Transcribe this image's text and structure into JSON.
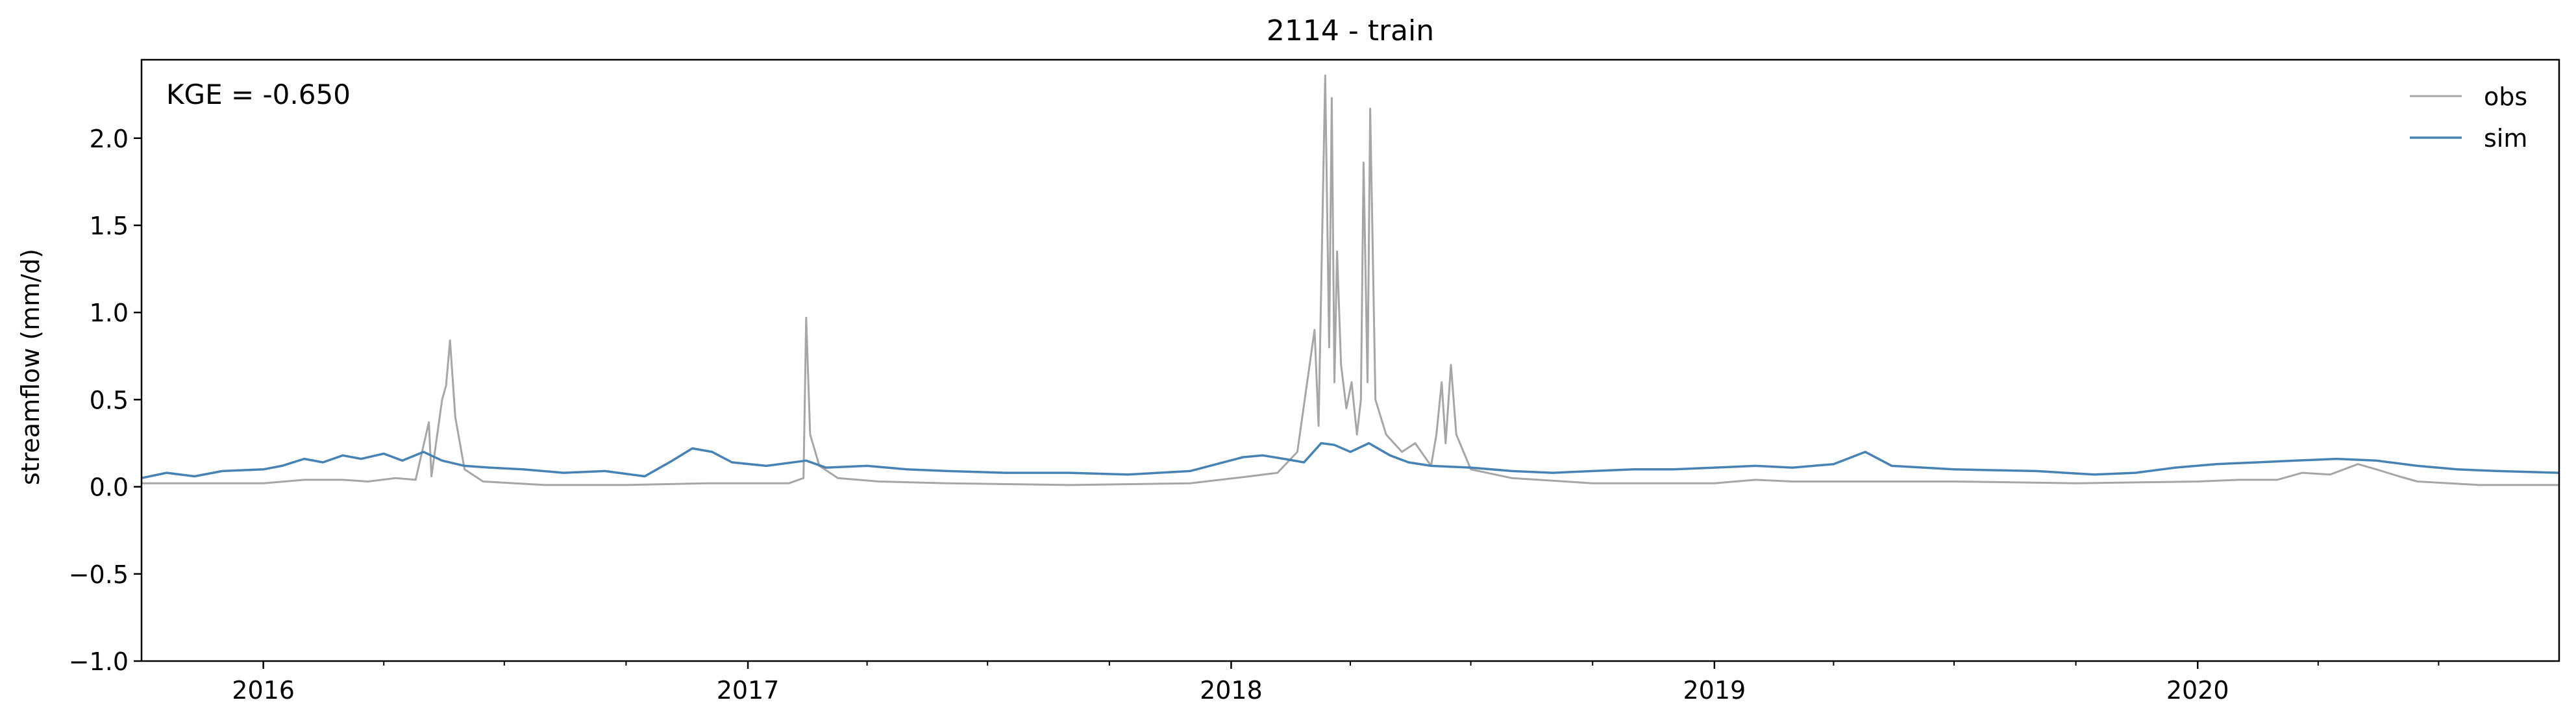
{
  "chart_data": {
    "type": "line",
    "title": "2114 - train",
    "xlabel": "",
    "ylabel": "streamflow (mm/d)",
    "xlim": [
      "2015-10-01",
      "2020-09-30"
    ],
    "ylim": [
      -1.0,
      2.45
    ],
    "yticks": [
      -1.0,
      -0.5,
      0.0,
      0.5,
      1.0,
      1.5,
      2.0
    ],
    "ytick_labels": [
      "−1.0",
      "−0.5",
      "0.0",
      "0.5",
      "1.0",
      "1.5",
      "2.0"
    ],
    "xticks": [
      "2016-01-01",
      "2017-01-01",
      "2018-01-01",
      "2019-01-01",
      "2020-01-01"
    ],
    "xtick_labels": [
      "2016",
      "2017",
      "2018",
      "2019",
      "2020"
    ],
    "annotation": "KGE = -0.650",
    "grid": false,
    "legend_position": "top-right",
    "series": [
      {
        "name": "obs",
        "color": "#a6a6a6",
        "points": [
          [
            "2015-10-01",
            0.02
          ],
          [
            "2015-11-15",
            0.02
          ],
          [
            "2016-01-01",
            0.02
          ],
          [
            "2016-02-01",
            0.04
          ],
          [
            "2016-03-01",
            0.04
          ],
          [
            "2016-03-20",
            0.03
          ],
          [
            "2016-04-10",
            0.05
          ],
          [
            "2016-04-25",
            0.04
          ],
          [
            "2016-05-05",
            0.37
          ],
          [
            "2016-05-07",
            0.06
          ],
          [
            "2016-05-15",
            0.5
          ],
          [
            "2016-05-18",
            0.58
          ],
          [
            "2016-05-21",
            0.84
          ],
          [
            "2016-05-25",
            0.4
          ],
          [
            "2016-06-01",
            0.1
          ],
          [
            "2016-06-15",
            0.03
          ],
          [
            "2016-08-01",
            0.01
          ],
          [
            "2016-10-01",
            0.01
          ],
          [
            "2016-12-01",
            0.02
          ],
          [
            "2017-02-01",
            0.02
          ],
          [
            "2017-02-12",
            0.05
          ],
          [
            "2017-02-14",
            0.97
          ],
          [
            "2017-02-17",
            0.3
          ],
          [
            "2017-02-24",
            0.12
          ],
          [
            "2017-03-10",
            0.05
          ],
          [
            "2017-04-10",
            0.03
          ],
          [
            "2017-06-01",
            0.02
          ],
          [
            "2017-09-01",
            0.01
          ],
          [
            "2017-12-01",
            0.02
          ],
          [
            "2018-01-15",
            0.06
          ],
          [
            "2018-02-05",
            0.08
          ],
          [
            "2018-02-20",
            0.2
          ],
          [
            "2018-03-05",
            0.9
          ],
          [
            "2018-03-08",
            0.35
          ],
          [
            "2018-03-13",
            2.36
          ],
          [
            "2018-03-16",
            0.8
          ],
          [
            "2018-03-18",
            2.23
          ],
          [
            "2018-03-20",
            0.6
          ],
          [
            "2018-03-22",
            1.35
          ],
          [
            "2018-03-25",
            0.7
          ],
          [
            "2018-03-29",
            0.45
          ],
          [
            "2018-04-02",
            0.6
          ],
          [
            "2018-04-06",
            0.3
          ],
          [
            "2018-04-09",
            0.5
          ],
          [
            "2018-04-11",
            1.86
          ],
          [
            "2018-04-14",
            0.6
          ],
          [
            "2018-04-16",
            2.17
          ],
          [
            "2018-04-20",
            0.5
          ],
          [
            "2018-04-28",
            0.3
          ],
          [
            "2018-05-10",
            0.2
          ],
          [
            "2018-05-20",
            0.25
          ],
          [
            "2018-06-01",
            0.12
          ],
          [
            "2018-06-05",
            0.3
          ],
          [
            "2018-06-09",
            0.6
          ],
          [
            "2018-06-12",
            0.25
          ],
          [
            "2018-06-16",
            0.7
          ],
          [
            "2018-06-20",
            0.3
          ],
          [
            "2018-07-01",
            0.1
          ],
          [
            "2018-08-01",
            0.05
          ],
          [
            "2018-10-01",
            0.02
          ],
          [
            "2019-01-01",
            0.02
          ],
          [
            "2019-02-01",
            0.04
          ],
          [
            "2019-03-01",
            0.03
          ],
          [
            "2019-05-01",
            0.03
          ],
          [
            "2019-07-01",
            0.03
          ],
          [
            "2019-10-01",
            0.02
          ],
          [
            "2020-01-01",
            0.03
          ],
          [
            "2020-02-01",
            0.04
          ],
          [
            "2020-03-01",
            0.04
          ],
          [
            "2020-03-20",
            0.08
          ],
          [
            "2020-04-10",
            0.07
          ],
          [
            "2020-05-01",
            0.13
          ],
          [
            "2020-05-15",
            0.1
          ],
          [
            "2020-06-01",
            0.06
          ],
          [
            "2020-06-15",
            0.03
          ],
          [
            "2020-08-01",
            0.01
          ],
          [
            "2020-09-30",
            0.01
          ]
        ]
      },
      {
        "name": "sim",
        "color": "#4682b4",
        "points": [
          [
            "2015-10-01",
            0.05
          ],
          [
            "2015-10-20",
            0.08
          ],
          [
            "2015-11-10",
            0.06
          ],
          [
            "2015-12-01",
            0.09
          ],
          [
            "2016-01-01",
            0.1
          ],
          [
            "2016-01-15",
            0.12
          ],
          [
            "2016-02-01",
            0.16
          ],
          [
            "2016-02-15",
            0.14
          ],
          [
            "2016-03-01",
            0.18
          ],
          [
            "2016-03-15",
            0.16
          ],
          [
            "2016-04-01",
            0.19
          ],
          [
            "2016-04-15",
            0.15
          ],
          [
            "2016-05-01",
            0.2
          ],
          [
            "2016-05-15",
            0.15
          ],
          [
            "2016-06-01",
            0.12
          ],
          [
            "2016-06-20",
            0.11
          ],
          [
            "2016-07-15",
            0.1
          ],
          [
            "2016-08-15",
            0.08
          ],
          [
            "2016-09-15",
            0.09
          ],
          [
            "2016-10-15",
            0.06
          ],
          [
            "2016-11-05",
            0.15
          ],
          [
            "2016-11-20",
            0.22
          ],
          [
            "2016-12-05",
            0.2
          ],
          [
            "2016-12-20",
            0.14
          ],
          [
            "2017-01-15",
            0.12
          ],
          [
            "2017-02-14",
            0.15
          ],
          [
            "2017-03-01",
            0.11
          ],
          [
            "2017-04-01",
            0.12
          ],
          [
            "2017-05-01",
            0.1
          ],
          [
            "2017-06-01",
            0.09
          ],
          [
            "2017-07-15",
            0.08
          ],
          [
            "2017-09-01",
            0.08
          ],
          [
            "2017-10-15",
            0.07
          ],
          [
            "2017-12-01",
            0.09
          ],
          [
            "2018-01-10",
            0.17
          ],
          [
            "2018-01-25",
            0.18
          ],
          [
            "2018-02-10",
            0.16
          ],
          [
            "2018-02-25",
            0.14
          ],
          [
            "2018-03-10",
            0.25
          ],
          [
            "2018-03-20",
            0.24
          ],
          [
            "2018-04-01",
            0.2
          ],
          [
            "2018-04-15",
            0.25
          ],
          [
            "2018-05-01",
            0.18
          ],
          [
            "2018-05-15",
            0.14
          ],
          [
            "2018-06-01",
            0.12
          ],
          [
            "2018-07-01",
            0.11
          ],
          [
            "2018-08-01",
            0.09
          ],
          [
            "2018-09-01",
            0.08
          ],
          [
            "2018-10-01",
            0.09
          ],
          [
            "2018-11-01",
            0.1
          ],
          [
            "2018-12-01",
            0.1
          ],
          [
            "2019-01-01",
            0.11
          ],
          [
            "2019-02-01",
            0.12
          ],
          [
            "2019-03-01",
            0.11
          ],
          [
            "2019-04-01",
            0.13
          ],
          [
            "2019-04-25",
            0.2
          ],
          [
            "2019-05-15",
            0.12
          ],
          [
            "2019-07-01",
            0.1
          ],
          [
            "2019-09-01",
            0.09
          ],
          [
            "2019-10-15",
            0.07
          ],
          [
            "2019-11-15",
            0.08
          ],
          [
            "2019-12-15",
            0.11
          ],
          [
            "2020-01-15",
            0.13
          ],
          [
            "2020-02-15",
            0.14
          ],
          [
            "2020-03-15",
            0.15
          ],
          [
            "2020-04-15",
            0.16
          ],
          [
            "2020-05-15",
            0.15
          ],
          [
            "2020-06-15",
            0.12
          ],
          [
            "2020-07-15",
            0.1
          ],
          [
            "2020-08-15",
            0.09
          ],
          [
            "2020-09-30",
            0.08
          ]
        ]
      }
    ]
  }
}
